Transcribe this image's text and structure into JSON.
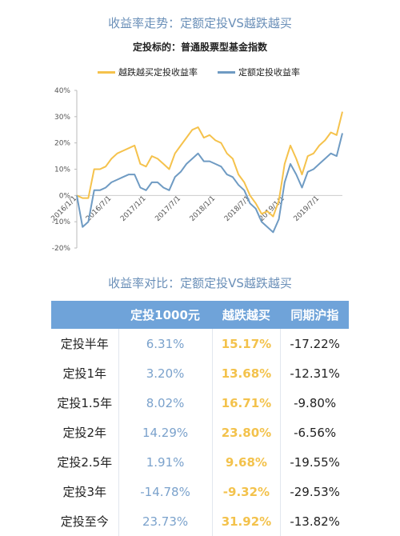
{
  "chart_data": {
    "type": "line",
    "title": "收益率走势：定额定投VS越跌越买",
    "subtitle": "定投标的：普通股票型基金指数",
    "ylim": [
      -20,
      40
    ],
    "yticks": [
      "40%",
      "30%",
      "20%",
      "10%",
      "0%",
      "-10%",
      "-20%"
    ],
    "xticks": [
      "2016/1/1",
      "2016/7/1",
      "2017/1/1",
      "2017/7/1",
      "2018/1/1",
      "2018/7/1",
      "2019/1/1",
      "2019/7/1"
    ],
    "x": [
      "2016/1/1",
      "2016/2/1",
      "2016/3/1",
      "2016/4/1",
      "2016/5/1",
      "2016/6/1",
      "2016/7/1",
      "2016/8/1",
      "2016/9/1",
      "2016/10/1",
      "2016/11/1",
      "2016/12/1",
      "2017/1/1",
      "2017/2/1",
      "2017/3/1",
      "2017/4/1",
      "2017/5/1",
      "2017/6/1",
      "2017/7/1",
      "2017/8/1",
      "2017/9/1",
      "2017/10/1",
      "2017/11/1",
      "2017/12/1",
      "2018/1/1",
      "2018/2/1",
      "2018/3/1",
      "2018/4/1",
      "2018/5/1",
      "2018/6/1",
      "2018/7/1",
      "2018/8/1",
      "2018/9/1",
      "2018/10/1",
      "2018/11/1",
      "2018/12/1",
      "2019/1/1",
      "2019/2/1",
      "2019/3/1",
      "2019/4/1",
      "2019/5/1",
      "2019/6/1",
      "2019/7/1",
      "2019/8/1",
      "2019/9/1",
      "2019/10/1",
      "2019/11/1"
    ],
    "series": [
      {
        "name": "越跌越买定投收益率",
        "color": "#f5c24c",
        "values": [
          0,
          -1,
          -1,
          10,
          10,
          11,
          14,
          16,
          17,
          18,
          19,
          12,
          11,
          15,
          14,
          12,
          10,
          16,
          19,
          22,
          25,
          26,
          22,
          23,
          21,
          20,
          16,
          14,
          8,
          5,
          0,
          -3,
          -7,
          -6,
          -8,
          -2,
          12,
          19,
          14,
          8,
          15,
          16,
          19,
          21,
          24,
          23,
          31.9
        ]
      },
      {
        "name": "定额定投收益率",
        "color": "#6f9bc3",
        "values": [
          0,
          -12,
          -10,
          2,
          2,
          3,
          5,
          6,
          7,
          8,
          8,
          3,
          2,
          5,
          5,
          3,
          2,
          7,
          9,
          12,
          14,
          16,
          13,
          13,
          12,
          11,
          8,
          7,
          4,
          2,
          -3,
          -5,
          -10,
          -12,
          -14,
          -9,
          5,
          12,
          8,
          3,
          9,
          10,
          12,
          14,
          16,
          15,
          23.7
        ]
      }
    ],
    "grid": false,
    "legend": "top"
  },
  "legend": {
    "a": "越跌越买定投收益率",
    "b": "定额定投收益率",
    "a_color": "#f5c24c",
    "b_color": "#6f9bc3"
  },
  "table": {
    "title": "收益率对比：定额定投VS越跌越买",
    "headers": [
      "",
      "定投1000元",
      "越跌越买",
      "同期沪指"
    ],
    "rows": [
      [
        "定投半年",
        "6.31%",
        "15.17%",
        "-17.22%"
      ],
      [
        "定投1年",
        "3.20%",
        "13.68%",
        "-12.31%"
      ],
      [
        "定投1.5年",
        "8.02%",
        "16.71%",
        "-9.80%"
      ],
      [
        "定投2年",
        "14.29%",
        "23.80%",
        "-6.56%"
      ],
      [
        "定投2.5年",
        "1.91%",
        "9.68%",
        "-19.55%"
      ],
      [
        "定投3年",
        "-14.78%",
        "-9.32%",
        "-29.53%"
      ],
      [
        "定投至今",
        "23.73%",
        "31.92%",
        "-13.82%"
      ]
    ]
  }
}
